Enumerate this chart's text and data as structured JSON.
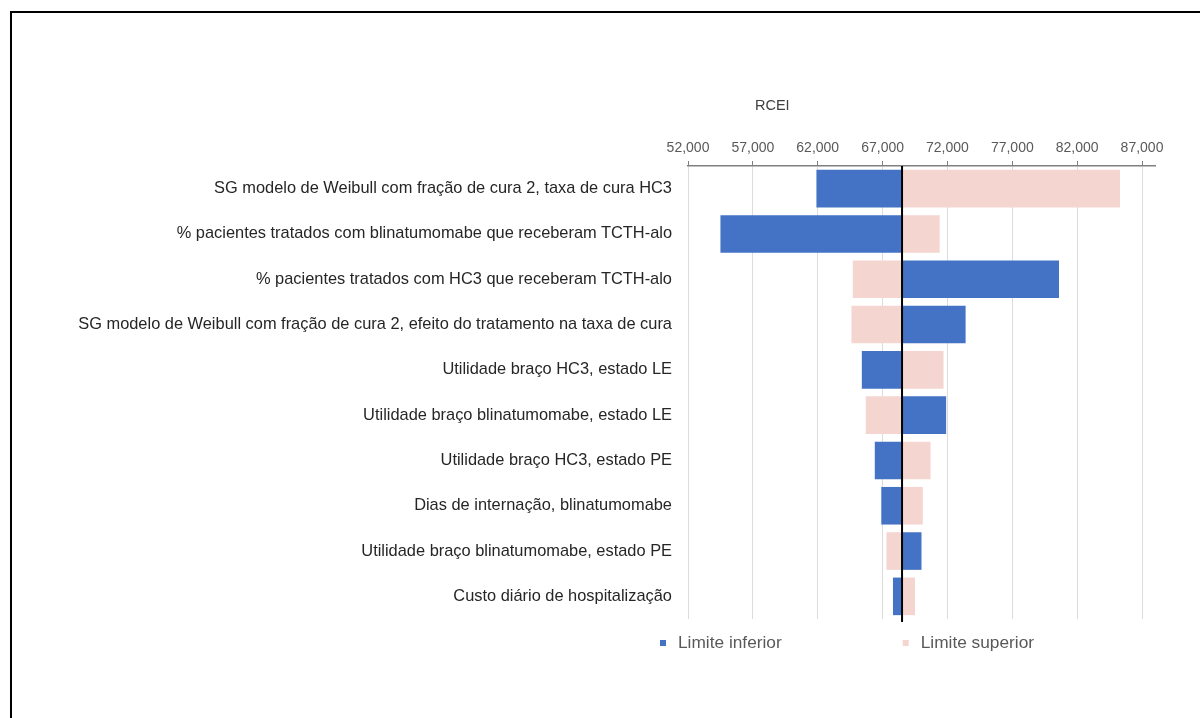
{
  "chart_data": {
    "type": "bar",
    "orientation": "horizontal",
    "xlabel": "RCEI",
    "categories": [
      "SG modelo de Weibull com fração de cura 2, taxa de cura HC3",
      "% pacientes tratados com blinatumomabe que receberam TCTH-alo",
      "% pacientes tratados com HC3 que receberam TCTH-alo",
      "SG modelo de Weibull com fração de cura 2, efeito do tratamento na taxa de cura",
      "Utilidade braço HC3, estado LE",
      "Utilidade braço blinatumomabe, estado LE",
      "Utilidade braço HC3, estado PE",
      "Dias de internação, blinatumomabe",
      "Utilidade braço blinatumomabe, estado PE",
      "Custo diário de hospitalização"
    ],
    "series": [
      {
        "name": "Limite inferior",
        "color": "#4472c4",
        "base": [
          68500,
          68500,
          68500,
          68500,
          68500,
          68500,
          68500,
          68500,
          68500,
          68500
        ],
        "values": [
          -6600,
          -14000,
          12100,
          4900,
          -3100,
          3400,
          -2100,
          -1600,
          1500,
          -700
        ]
      },
      {
        "name": "Limite superior",
        "color": "#f5d5cf",
        "base": [
          68500,
          68500,
          68500,
          68500,
          68500,
          68500,
          68500,
          68500,
          68500,
          68500
        ],
        "values": [
          16800,
          2900,
          -3800,
          -3900,
          3200,
          -2800,
          2200,
          1600,
          -1200,
          1000
        ]
      }
    ],
    "xlim": [
      52000,
      88000
    ],
    "xticks": [
      {
        "value": 52000,
        "label": "52,000"
      },
      {
        "value": 57000,
        "label": "57,000"
      },
      {
        "value": 62000,
        "label": "62,000"
      },
      {
        "value": 67000,
        "label": "67,000"
      },
      {
        "value": 72000,
        "label": "72,000"
      },
      {
        "value": 77000,
        "label": "77,000"
      },
      {
        "value": 82000,
        "label": "82,000"
      },
      {
        "value": 87000,
        "label": "87,000"
      }
    ],
    "grid": "x",
    "legend": "bottom",
    "ref_lines": [
      {
        "axis": "x",
        "value": 68500,
        "color": "#000000"
      }
    ]
  }
}
